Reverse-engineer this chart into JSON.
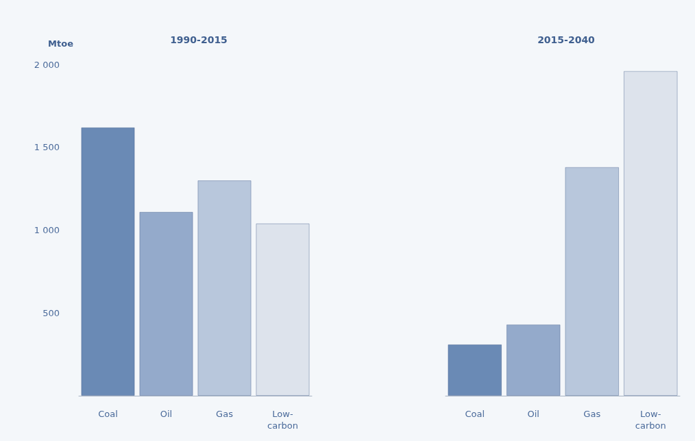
{
  "chart_data": [
    {
      "type": "bar",
      "title": "1990-2015",
      "ylabel": "Mtoe",
      "categories": [
        "Coal",
        "Oil",
        "Gas",
        "Low-carbon"
      ],
      "values": [
        1620,
        1110,
        1300,
        1040
      ],
      "colors": [
        "#6a8ab5",
        "#94aacb",
        "#b8c7dc",
        "#dde3ec"
      ],
      "ylim": [
        0,
        2000
      ],
      "yticks": [
        500,
        {
          "value": 1000,
          "label": "1 000"
        },
        {
          "value": 1500,
          "label": "1 500"
        },
        {
          "value": 2000,
          "label": "2 000"
        }
      ],
      "grid": false
    },
    {
      "type": "bar",
      "title": "2015-2040",
      "categories": [
        "Coal",
        "Oil",
        "Gas",
        "Low-carbon"
      ],
      "values": [
        310,
        430,
        1380,
        1960
      ],
      "colors": [
        "#6a8ab5",
        "#94aacb",
        "#b8c7dc",
        "#dde3ec"
      ],
      "ylim": [
        0,
        2000
      ],
      "tick_labels": "x",
      "grid": false
    }
  ]
}
